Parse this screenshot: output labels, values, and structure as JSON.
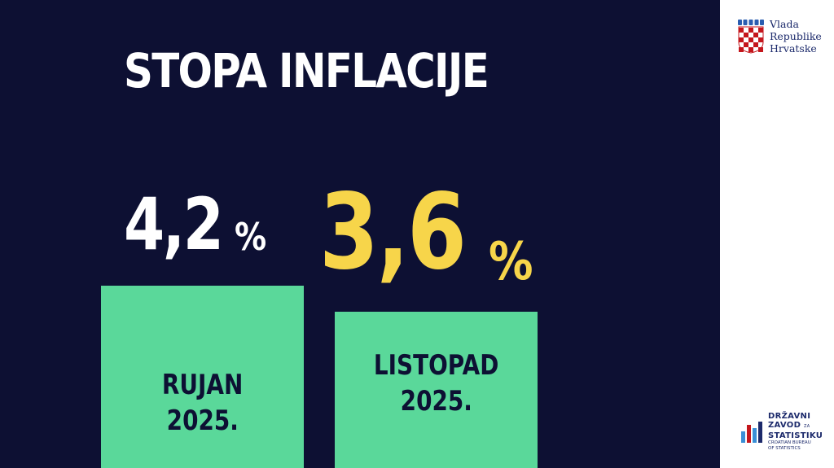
{
  "title": "STOPA INFLACIJE",
  "colors": {
    "background": "#0d1033",
    "bar": "#5ad89a",
    "value_previous": "#ffffff",
    "value_current": "#f7d54a",
    "label_text": "#0d1033",
    "side_panel": "#ffffff"
  },
  "chart_data": {
    "type": "bar",
    "title": "STOPA INFLACIJE",
    "categories": [
      "RUJAN 2025.",
      "LISTOPAD 2025."
    ],
    "values": [
      4.2,
      3.6
    ],
    "unit": "%",
    "ylim": [
      0,
      4.2
    ],
    "grid": false,
    "bars": [
      {
        "label_line1": "RUJAN",
        "label_line2": "2025.",
        "value": 4.2,
        "value_text": "4,2",
        "unit": "%"
      },
      {
        "label_line1": "LISTOPAD",
        "label_line2": "2025.",
        "value": 3.6,
        "value_text": "3,6",
        "unit": "%"
      }
    ]
  },
  "logos": {
    "government": {
      "icon": "croatian-coat-of-arms-icon",
      "lines": [
        "Vlada",
        "Republike",
        "Hrvatske"
      ]
    },
    "statistics": {
      "icon": "statistics-bars-icon",
      "lines": [
        "DRŽAVNI",
        "ZAVOD",
        "STATISTIKU"
      ],
      "small": "ZA",
      "sub_lines": [
        "CROATIAN BUREAU",
        "OF STATISTICS"
      ]
    }
  }
}
